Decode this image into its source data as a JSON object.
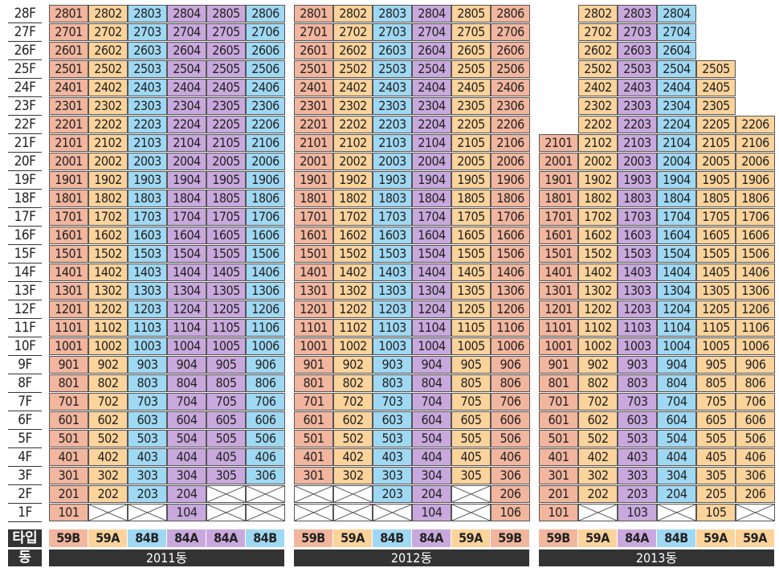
{
  "floors": [
    "28F",
    "27F",
    "26F",
    "25F",
    "24F",
    "23F",
    "22F",
    "21F",
    "20F",
    "19F",
    "18F",
    "17F",
    "16F",
    "15F",
    "14F",
    "13F",
    "12F",
    "11F",
    "10F",
    "9F",
    "8F",
    "7F",
    "6F",
    "5F",
    "4F",
    "3F",
    "2F",
    "1F"
  ],
  "row_labels": {
    "type": "타입",
    "dong": "동"
  },
  "colors": {
    "59B": "#f2b59e",
    "59A": "#fbd39b",
    "84B": "#9fd8f3",
    "84A": "#c9a9dd",
    "empty": "#ffffff",
    "bar": "#333333"
  },
  "buildings": [
    {
      "name": "2011동",
      "types": [
        "59B",
        "59A",
        "84B",
        "84A",
        "84A",
        "84B"
      ],
      "top_floor": 28,
      "column_top_floor": [
        28,
        28,
        28,
        28,
        28,
        28
      ],
      "missing": [
        "205",
        "206",
        "102",
        "103",
        "105",
        "106"
      ]
    },
    {
      "name": "2012동",
      "types": [
        "59B",
        "59A",
        "84B",
        "84A",
        "59A",
        "59B"
      ],
      "top_floor": 28,
      "column_top_floor": [
        28,
        28,
        28,
        28,
        28,
        28
      ],
      "missing": [
        "201",
        "202",
        "205",
        "101",
        "102",
        "103",
        "105"
      ]
    },
    {
      "name": "2013동",
      "types": [
        "59B",
        "59A",
        "84A",
        "84B",
        "59A",
        "59A"
      ],
      "top_floor": 28,
      "column_top_floor": [
        21,
        28,
        28,
        28,
        25,
        22
      ],
      "missing": [
        "102",
        "104",
        "106"
      ]
    }
  ]
}
